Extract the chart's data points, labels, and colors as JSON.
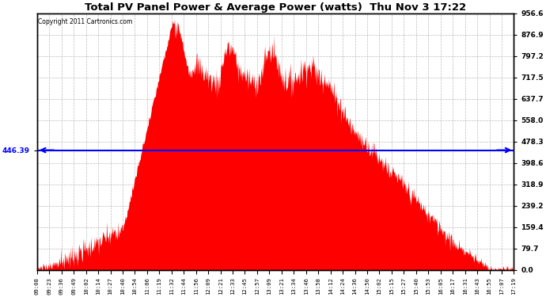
{
  "title": "Total PV Panel Power & Average Power (watts)  Thu Nov 3 17:22",
  "copyright": "Copyright 2011 Cartronics.com",
  "avg_line_y": 446.39,
  "y_max": 956.6,
  "y_min": 0.0,
  "right_yticks": [
    0.0,
    79.7,
    159.4,
    239.2,
    318.9,
    398.6,
    478.3,
    558.0,
    637.7,
    717.5,
    797.2,
    876.9,
    956.6
  ],
  "fill_color": "#FF0000",
  "line_color": "#0000FF",
  "background_color": "#FFFFFF",
  "grid_color": "#BBBBBB",
  "left_label": "446.39",
  "xtick_labels": [
    "09:08",
    "09:23",
    "09:36",
    "09:49",
    "10:02",
    "10:14",
    "10:27",
    "10:40",
    "10:54",
    "11:06",
    "11:19",
    "11:32",
    "11:44",
    "11:56",
    "12:09",
    "12:21",
    "12:33",
    "12:45",
    "12:57",
    "13:09",
    "13:21",
    "13:34",
    "13:46",
    "13:58",
    "14:12",
    "14:24",
    "14:36",
    "14:50",
    "15:02",
    "15:15",
    "15:27",
    "15:40",
    "15:53",
    "16:05",
    "16:17",
    "16:31",
    "16:43",
    "16:55",
    "17:07",
    "17:19"
  ]
}
